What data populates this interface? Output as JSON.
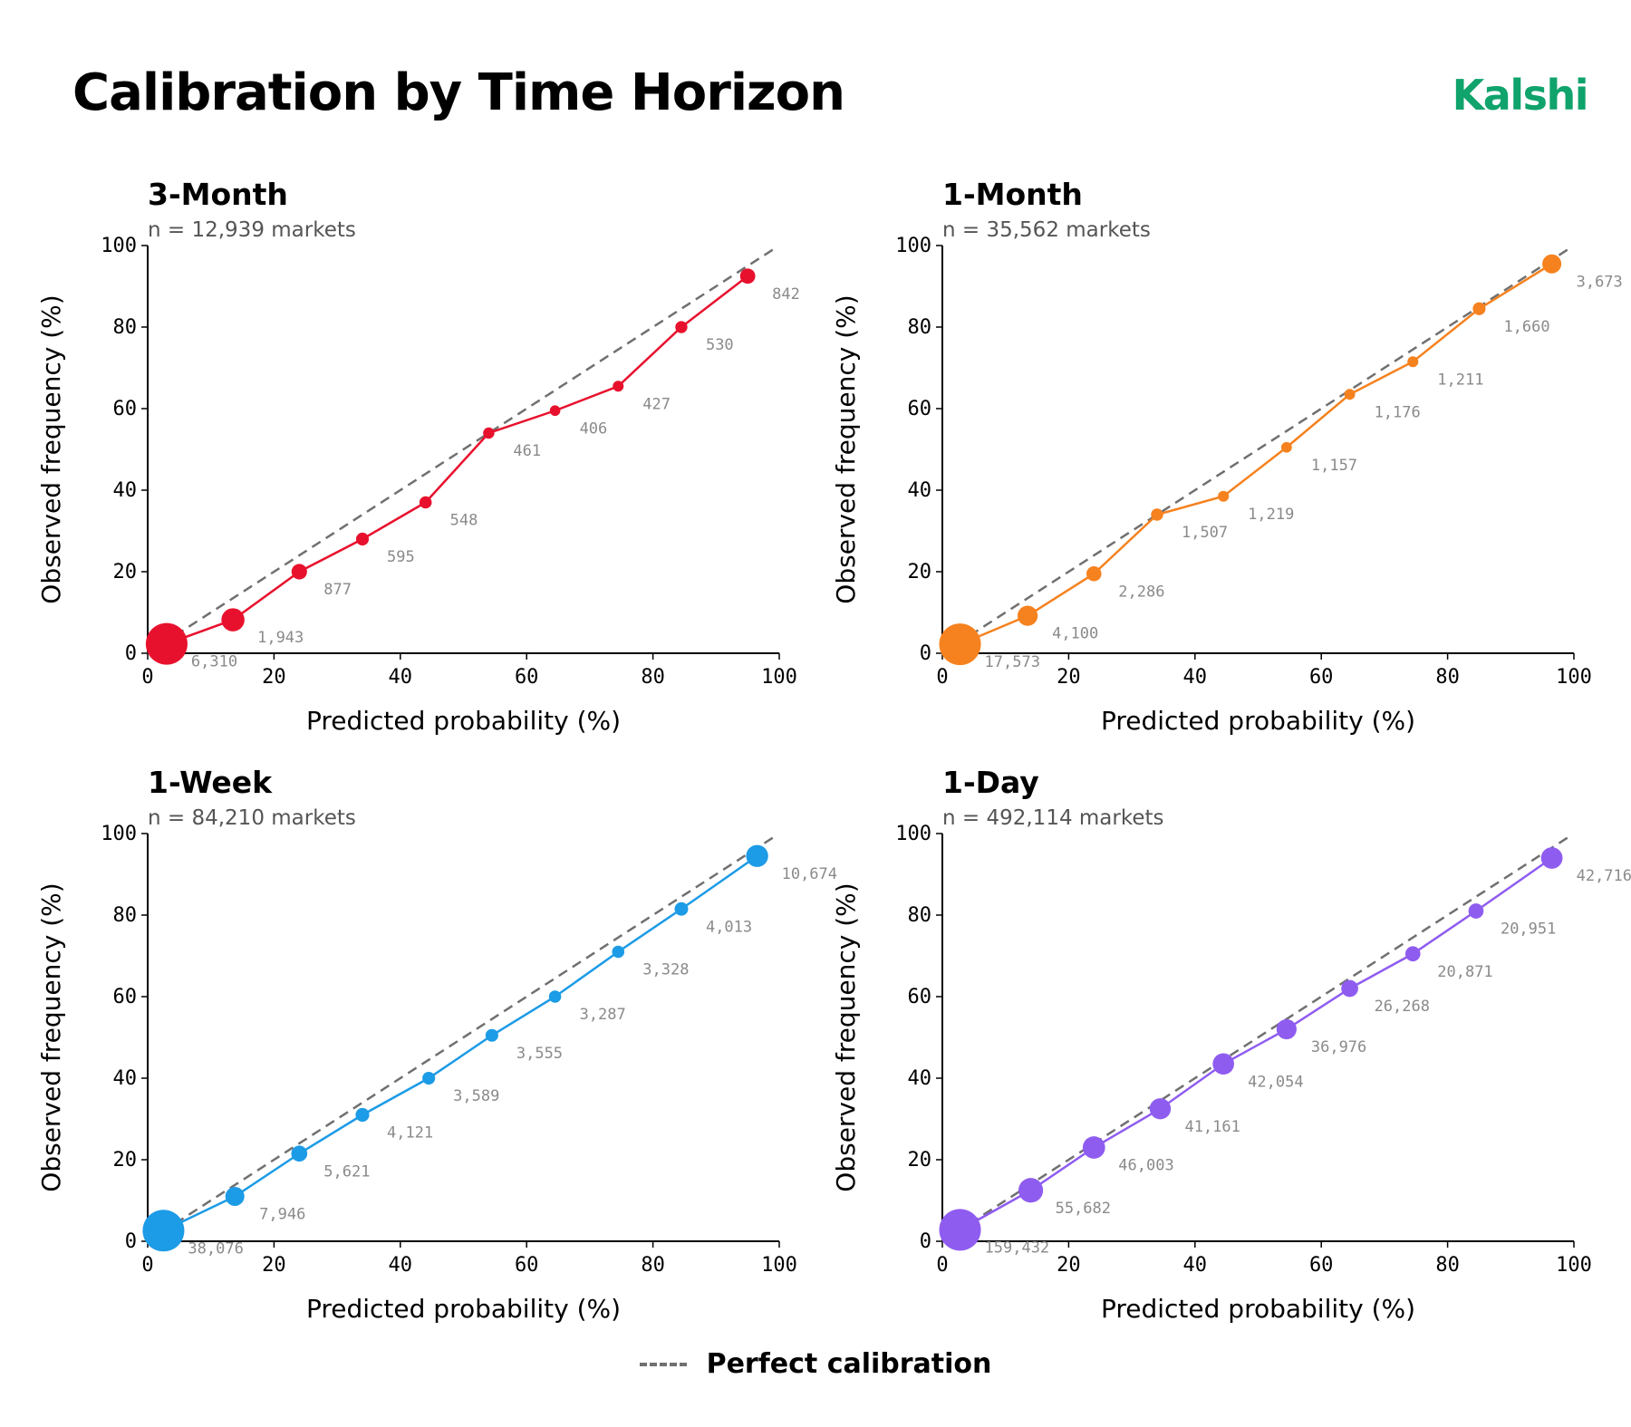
{
  "page": {
    "title": "Calibration by Time Horizon",
    "brand": "Kalshi",
    "legend_label": "Perfect calibration"
  },
  "colors": {
    "brand": "#10a36c",
    "reference_line": "#707070"
  },
  "chart_data": [
    {
      "type": "scatter",
      "title": "3-Month",
      "subtitle": "n = 12,939 markets",
      "xlabel": "Predicted probability (%)",
      "ylabel": "Observed frequency (%)",
      "xlim": [
        0,
        100
      ],
      "ylim": [
        0,
        100
      ],
      "xticks": [
        0,
        20,
        40,
        60,
        80,
        100
      ],
      "yticks": [
        0,
        20,
        40,
        60,
        80,
        100
      ],
      "color": "#e8112d",
      "x": [
        3,
        13.5,
        24,
        34,
        44,
        54,
        64.5,
        74.5,
        84.5,
        95
      ],
      "y": [
        2.3,
        8.2,
        20,
        28,
        37,
        54,
        59.5,
        65.5,
        80,
        92.5
      ],
      "counts": [
        "6,310",
        "1,943",
        "877",
        "595",
        "548",
        "461",
        "406",
        "427",
        "530",
        "842"
      ],
      "reference_line": "Perfect calibration"
    },
    {
      "type": "scatter",
      "title": "1-Month",
      "subtitle": "n = 35,562 markets",
      "xlabel": "Predicted probability (%)",
      "ylabel": "Observed frequency (%)",
      "xlim": [
        0,
        100
      ],
      "ylim": [
        0,
        100
      ],
      "xticks": [
        0,
        20,
        40,
        60,
        80,
        100
      ],
      "yticks": [
        0,
        20,
        40,
        60,
        80,
        100
      ],
      "color": "#f5821f",
      "x": [
        2.8,
        13.5,
        24,
        34,
        44.5,
        54.5,
        64.5,
        74.5,
        85,
        96.5
      ],
      "y": [
        2.2,
        9.2,
        19.5,
        34,
        38.5,
        50.5,
        63.5,
        71.5,
        84.5,
        95.5
      ],
      "counts": [
        "17,573",
        "4,100",
        "2,286",
        "1,507",
        "1,219",
        "1,157",
        "1,176",
        "1,211",
        "1,660",
        "3,673"
      ],
      "reference_line": "Perfect calibration"
    },
    {
      "type": "scatter",
      "title": "1-Week",
      "subtitle": "n = 84,210 markets",
      "xlabel": "Predicted probability (%)",
      "ylabel": "Observed frequency (%)",
      "xlim": [
        0,
        100
      ],
      "ylim": [
        0,
        100
      ],
      "xticks": [
        0,
        20,
        40,
        60,
        80,
        100
      ],
      "yticks": [
        0,
        20,
        40,
        60,
        80,
        100
      ],
      "color": "#1c9be6",
      "x": [
        2.5,
        13.8,
        24,
        34,
        44.5,
        54.5,
        64.5,
        74.5,
        84.5,
        96.5
      ],
      "y": [
        2.6,
        11,
        21.5,
        31,
        40,
        50.5,
        60,
        71,
        81.5,
        94.5
      ],
      "counts": [
        "38,076",
        "7,946",
        "5,621",
        "4,121",
        "3,589",
        "3,555",
        "3,287",
        "3,328",
        "4,013",
        "10,674"
      ],
      "reference_line": "Perfect calibration"
    },
    {
      "type": "scatter",
      "title": "1-Day",
      "subtitle": "n = 492,114 markets",
      "xlabel": "Predicted probability (%)",
      "ylabel": "Observed frequency (%)",
      "xlim": [
        0,
        100
      ],
      "ylim": [
        0,
        100
      ],
      "xticks": [
        0,
        20,
        40,
        60,
        80,
        100
      ],
      "yticks": [
        0,
        20,
        40,
        60,
        80,
        100
      ],
      "color": "#8f5cf0",
      "x": [
        2.8,
        14,
        24,
        34.5,
        44.5,
        54.5,
        64.5,
        74.5,
        84.5,
        96.5
      ],
      "y": [
        2.8,
        12.5,
        23,
        32.5,
        43.5,
        52,
        62,
        70.5,
        81,
        94
      ],
      "counts": [
        "159,432",
        "55,682",
        "46,003",
        "41,161",
        "42,054",
        "36,976",
        "26,268",
        "20,871",
        "20,951",
        "42,716"
      ],
      "reference_line": "Perfect calibration"
    }
  ]
}
